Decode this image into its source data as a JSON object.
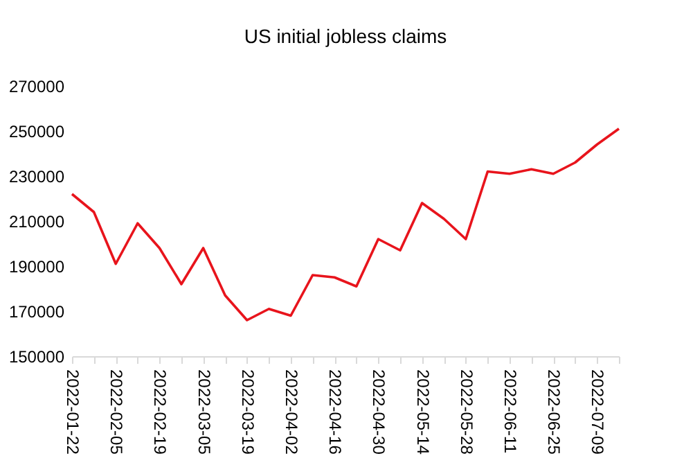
{
  "chart_data": {
    "type": "line",
    "title": "US initial jobless claims",
    "categories": [
      "2022-01-22",
      null,
      "2022-02-05",
      null,
      "2022-02-19",
      null,
      "2022-03-05",
      null,
      "2022-03-19",
      null,
      "2022-04-02",
      null,
      "2022-04-16",
      null,
      "2022-04-30",
      null,
      "2022-05-14",
      null,
      "2022-05-28",
      null,
      "2022-06-11",
      null,
      "2022-06-25",
      null,
      "2022-07-09",
      null
    ],
    "series": [
      {
        "color": "#e8141c",
        "values": [
          222000,
          214000,
          191000,
          209000,
          198000,
          182000,
          198000,
          177000,
          166000,
          171000,
          168000,
          186000,
          185000,
          181000,
          202000,
          197000,
          218000,
          211000,
          202000,
          232000,
          231000,
          233000,
          231000,
          236000,
          244000,
          251000
        ]
      }
    ],
    "ylim": [
      150000,
      270000
    ],
    "yticks": [
      150000,
      170000,
      190000,
      210000,
      230000,
      250000,
      270000
    ],
    "grid": false,
    "marker": "none",
    "line_style": "solid"
  }
}
